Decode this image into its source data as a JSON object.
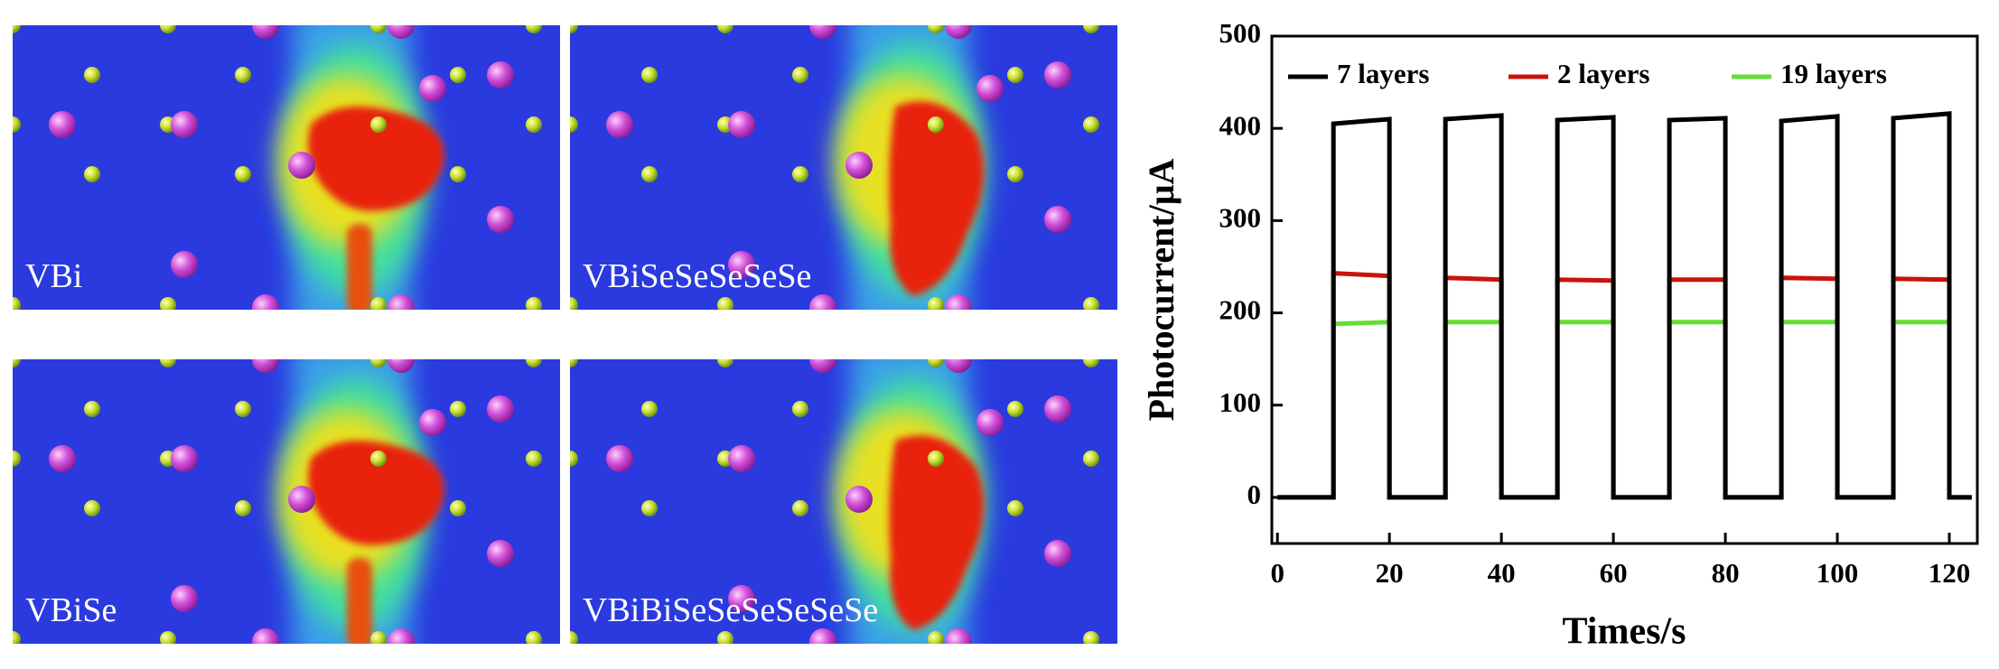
{
  "panels": [
    {
      "label": "VBi"
    },
    {
      "label": "VBiSeSeSeSeSe"
    },
    {
      "label": "VBiSe"
    },
    {
      "label": "VBiBiSeSeSeSeSeSe"
    }
  ],
  "chart_data": {
    "type": "line",
    "ylabel": "Photocurrent/μA",
    "xlabel": "Times/s",
    "x": [
      0,
      10,
      10,
      20,
      20,
      30,
      30,
      40,
      40,
      50,
      50,
      60,
      60,
      70,
      70,
      80,
      80,
      90,
      90,
      100,
      100,
      110,
      110,
      120,
      120,
      124
    ],
    "series": [
      {
        "name": "7 layers",
        "color": "#000000",
        "values": [
          0,
          0,
          405,
          410,
          0,
          0,
          410,
          414,
          0,
          0,
          409,
          412,
          0,
          0,
          409,
          411,
          0,
          0,
          408,
          413,
          0,
          0,
          411,
          416,
          0,
          0
        ]
      },
      {
        "name": "2 layers",
        "color": "#c8140a",
        "values": [
          0,
          0,
          243,
          240,
          0,
          0,
          238,
          236,
          0,
          0,
          236,
          235,
          0,
          0,
          236,
          236,
          0,
          0,
          238,
          237,
          0,
          0,
          237,
          236,
          0,
          0
        ]
      },
      {
        "name": "19 layers",
        "color": "#66dd33",
        "values": [
          0,
          0,
          188,
          190,
          0,
          0,
          190,
          190,
          0,
          0,
          190,
          190,
          0,
          0,
          190,
          190,
          0,
          0,
          190,
          190,
          0,
          0,
          190,
          190,
          0,
          0
        ]
      }
    ],
    "xlim": [
      -1,
      125
    ],
    "ylim": [
      -50,
      500
    ],
    "xticks": [
      0,
      20,
      40,
      60,
      80,
      100,
      120
    ],
    "yticks": [
      0,
      100,
      200,
      300,
      400,
      500
    ],
    "legend": "top"
  }
}
